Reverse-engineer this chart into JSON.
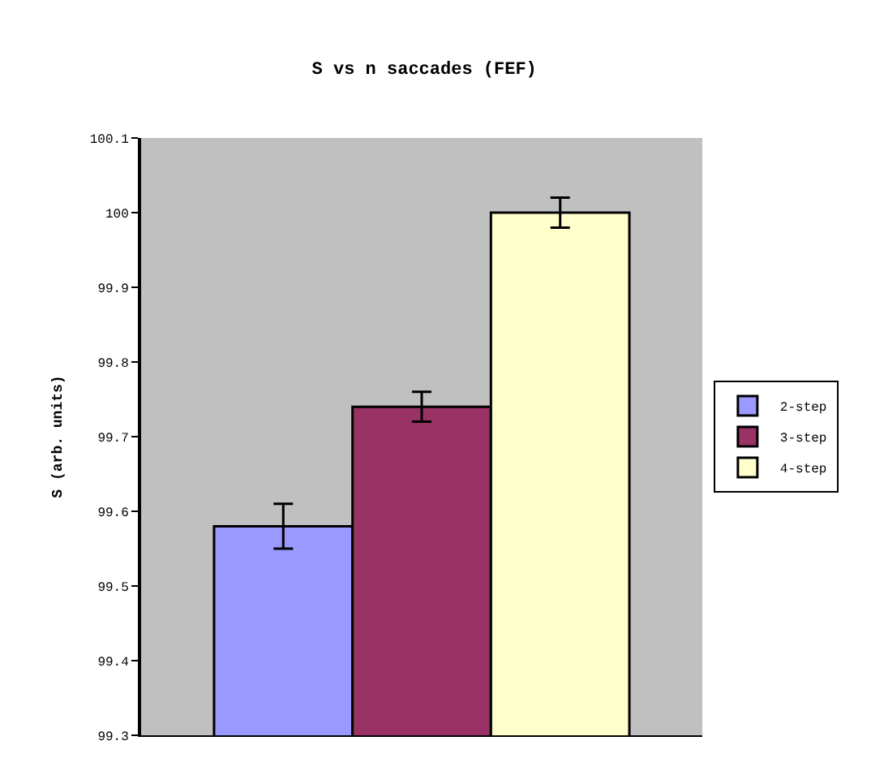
{
  "chart_data": {
    "type": "bar",
    "title": "S vs n saccades (FEF)",
    "ylabel": "S (arb. units)",
    "categories": [
      null
    ],
    "series": [
      {
        "name": "2-step",
        "color": "#9999ff",
        "values": [
          99.58
        ],
        "errors": [
          0.03
        ]
      },
      {
        "name": "3-step",
        "color": "#993366",
        "values": [
          99.74
        ],
        "errors": [
          0.02
        ]
      },
      {
        "name": "4-step",
        "color": "#ffffcc",
        "values": [
          100.0
        ],
        "errors": [
          0.02
        ]
      }
    ],
    "ylim": [
      99.3,
      100.1
    ],
    "yticks": [
      99.3,
      99.4,
      99.5,
      99.6,
      99.7,
      99.8,
      99.9,
      100,
      100.1
    ],
    "grid": false,
    "legend": "right"
  }
}
